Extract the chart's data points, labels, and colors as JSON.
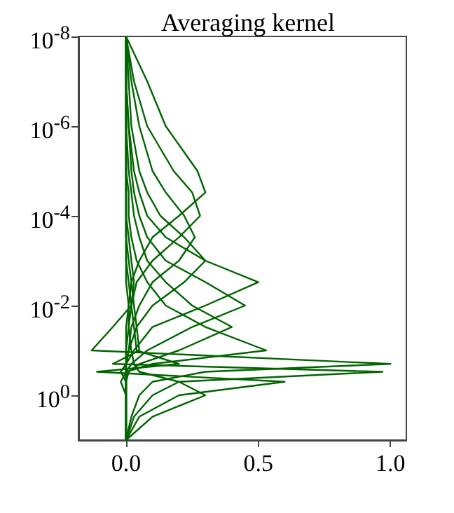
{
  "chart_data": {
    "type": "line",
    "title": "Averaging kernel",
    "log": "y",
    "grid": false,
    "marker": "none",
    "line_style": "solid",
    "xlim": [
      -0.18,
      1.06
    ],
    "xticks": [
      {
        "value": 0,
        "label": "0.0"
      },
      0.5,
      {
        "value": 1,
        "label": "1.0"
      }
    ],
    "ylim": [
      10,
      1e-08
    ],
    "yticks": [
      {
        "value": 1e-08,
        "label": "10$^{-8}$"
      },
      {
        "value": 1e-06,
        "label": "10$^{-6}$"
      },
      {
        "value": 0.0001,
        "label": "10$^{-4}$"
      },
      {
        "value": 0.01,
        "label": "10$^{-2}$"
      },
      {
        "value": 1,
        "label": "10$^{0}$"
      }
    ],
    "series": [
      {
        "color": "#006400",
        "x": [
          0,
          0.08,
          0.15,
          0.27,
          0.3,
          0.2,
          0.1,
          0.05,
          0.02,
          0.01,
          0,
          0,
          0,
          0,
          0,
          0,
          0,
          0
        ],
        "values": [
          1e-08,
          1e-07,
          1e-06,
          1e-05,
          3e-05,
          0.0001,
          0.0003,
          0.001,
          0.003,
          0.01,
          0.03,
          0.1,
          0.2,
          0.3,
          0.5,
          1,
          3,
          10
        ]
      },
      {
        "color": "#006400",
        "x": [
          0,
          0.03,
          0.08,
          0.18,
          0.25,
          0.28,
          0.2,
          0.1,
          0.04,
          0.02,
          0.01,
          0,
          0,
          0,
          0,
          0,
          0,
          0
        ],
        "values": [
          1e-08,
          1e-07,
          1e-06,
          1e-05,
          3e-05,
          0.0001,
          0.0003,
          0.001,
          0.003,
          0.01,
          0.03,
          0.1,
          0.2,
          0.3,
          0.5,
          1,
          3,
          10
        ]
      },
      {
        "color": "#006400",
        "x": [
          0,
          0.02,
          0.05,
          0.1,
          0.15,
          0.22,
          0.26,
          0.2,
          0.1,
          0.05,
          0.02,
          0.01,
          0,
          0,
          0,
          0,
          0,
          0
        ],
        "values": [
          1e-08,
          1e-07,
          1e-06,
          1e-05,
          3e-05,
          0.0001,
          0.0003,
          0.001,
          0.003,
          0.01,
          0.03,
          0.1,
          0.2,
          0.3,
          0.5,
          1,
          3,
          10
        ]
      },
      {
        "color": "#006400",
        "x": [
          0,
          0.01,
          0.02,
          0.05,
          0.08,
          0.13,
          0.22,
          0.3,
          0.22,
          0.1,
          0.04,
          0.01,
          0,
          0,
          0,
          0,
          0,
          0
        ],
        "values": [
          1e-08,
          1e-07,
          1e-06,
          1e-05,
          3e-05,
          0.0001,
          0.0003,
          0.001,
          0.003,
          0.01,
          0.03,
          0.1,
          0.2,
          0.3,
          0.5,
          1,
          3,
          10
        ]
      },
      {
        "color": "#006400",
        "x": [
          0,
          0,
          0.01,
          0.03,
          0.05,
          0.08,
          0.15,
          0.3,
          0.5,
          0.3,
          0.1,
          0.03,
          0,
          -0.02,
          0,
          0,
          0,
          0
        ],
        "values": [
          1e-08,
          1e-07,
          1e-06,
          1e-05,
          3e-05,
          0.0001,
          0.0003,
          0.001,
          0.003,
          0.01,
          0.03,
          0.1,
          0.2,
          0.3,
          0.5,
          1,
          3,
          10
        ]
      },
      {
        "color": "#006400",
        "x": [
          0,
          0,
          0.01,
          0.02,
          0.03,
          0.05,
          0.08,
          0.15,
          0.3,
          0.45,
          0.25,
          0.08,
          0.02,
          0,
          0,
          0,
          0,
          0
        ],
        "values": [
          1e-08,
          1e-07,
          1e-06,
          1e-05,
          3e-05,
          0.0001,
          0.0003,
          0.001,
          0.003,
          0.01,
          0.03,
          0.1,
          0.2,
          0.3,
          0.5,
          1,
          3,
          10
        ]
      },
      {
        "color": "#006400",
        "x": [
          0,
          0,
          0,
          0.01,
          0.02,
          0.03,
          0.05,
          0.08,
          0.15,
          0.25,
          0.4,
          0.2,
          0.05,
          0.01,
          0,
          0,
          0,
          0
        ],
        "values": [
          1e-08,
          1e-07,
          1e-06,
          1e-05,
          3e-05,
          0.0001,
          0.0003,
          0.001,
          0.003,
          0.01,
          0.03,
          0.1,
          0.2,
          0.3,
          0.5,
          1,
          3,
          10
        ]
      },
      {
        "color": "#006400",
        "x": [
          0,
          0,
          0,
          0,
          0.01,
          0.01,
          0.02,
          0.04,
          0.08,
          0.15,
          0.3,
          0.53,
          0.1,
          0,
          -0.02,
          0,
          0,
          0
        ],
        "values": [
          1e-08,
          1e-07,
          1e-06,
          1e-05,
          3e-05,
          0.0001,
          0.0003,
          0.001,
          0.003,
          0.01,
          0.03,
          0.1,
          0.2,
          0.3,
          0.5,
          1,
          3,
          10
        ]
      },
      {
        "color": "#006400",
        "x": [
          0,
          0,
          0,
          0,
          0,
          0,
          0.01,
          0.02,
          0.03,
          0.02,
          -0.05,
          -0.13,
          1,
          0.3,
          0.1,
          0.05,
          0.02,
          0
        ],
        "values": [
          1e-08,
          1e-07,
          1e-06,
          1e-05,
          3e-05,
          0.0001,
          0.0003,
          0.001,
          0.003,
          0.01,
          0.03,
          0.1,
          0.2,
          0.3,
          0.5,
          1,
          3,
          10
        ]
      },
      {
        "color": "#006400",
        "x": [
          0,
          0,
          0,
          0,
          0,
          0,
          0,
          0.01,
          0.02,
          0.03,
          0.04,
          0.05,
          -0.05,
          0.97,
          0.2,
          0.1,
          0.03,
          0
        ],
        "values": [
          1e-08,
          1e-07,
          1e-06,
          1e-05,
          3e-05,
          0.0001,
          0.0003,
          0.001,
          0.003,
          0.01,
          0.03,
          0.1,
          0.2,
          0.3,
          0.5,
          1,
          3,
          10
        ]
      },
      {
        "color": "#006400",
        "x": [
          0,
          0,
          0,
          0,
          0,
          0,
          0,
          0,
          0.01,
          0.02,
          0.03,
          0.04,
          0.2,
          -0.11,
          0.6,
          0.2,
          0.05,
          0
        ],
        "values": [
          1e-08,
          1e-07,
          1e-06,
          1e-05,
          3e-05,
          0.0001,
          0.0003,
          0.001,
          0.003,
          0.01,
          0.03,
          0.1,
          0.2,
          0.3,
          0.5,
          1,
          3,
          10
        ]
      },
      {
        "color": "#006400",
        "x": [
          0,
          0,
          0,
          0,
          0,
          0,
          0,
          0,
          0,
          0.01,
          0.01,
          0.02,
          0.03,
          0.05,
          0.2,
          0.3,
          0.1,
          0
        ],
        "values": [
          1e-08,
          1e-07,
          1e-06,
          1e-05,
          3e-05,
          0.0001,
          0.0003,
          0.001,
          0.003,
          0.01,
          0.03,
          0.1,
          0.2,
          0.3,
          0.5,
          1,
          3,
          10
        ]
      }
    ]
  }
}
